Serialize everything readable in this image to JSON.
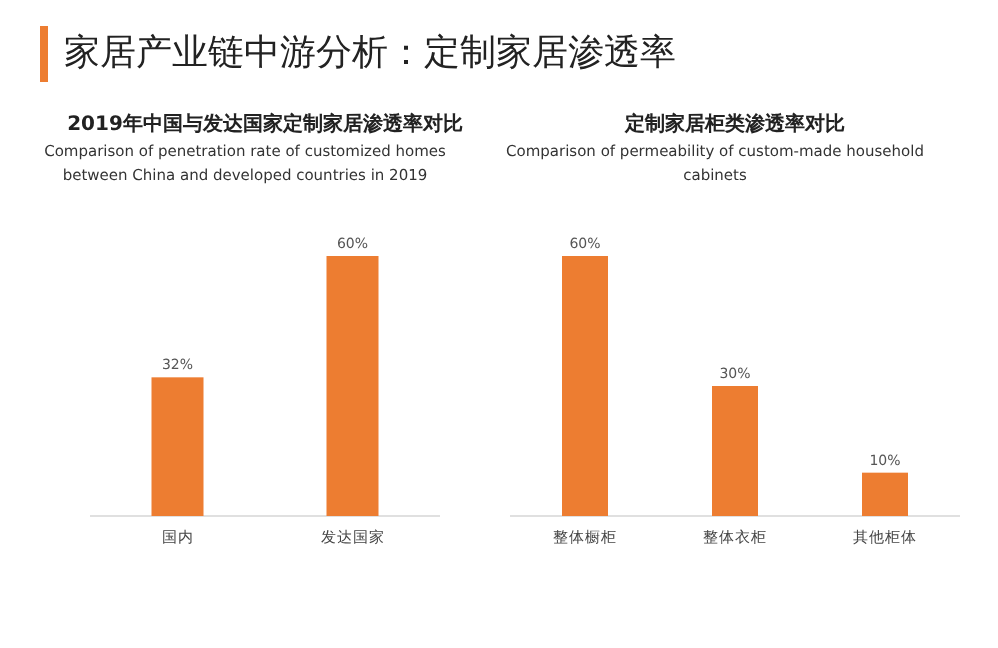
{
  "chart_data": [
    {
      "type": "bar",
      "title": "2019年中国与发达国家定制家居渗透率对比",
      "subtitle": "Comparison of penetration rate of customized homes between China and developed countries in 2019",
      "annotations": [
        "家居产业链中游分析：定制家居渗透率"
      ],
      "categories": [
        "国内",
        "发达国家"
      ],
      "values": [
        32,
        60
      ],
      "value_labels": [
        "32%",
        "60%"
      ],
      "color": "#ed7d31"
    },
    {
      "type": "bar",
      "title": "定制家居柜类渗透率对比",
      "subtitle": "Comparison of permeability of custom-made household cabinets",
      "categories": [
        "整体橱柜",
        "整体衣柜",
        "其他柜体"
      ],
      "values": [
        60,
        30,
        10
      ],
      "value_labels": [
        "60%",
        "30%",
        "10%"
      ],
      "color": "#ed7d31"
    }
  ]
}
